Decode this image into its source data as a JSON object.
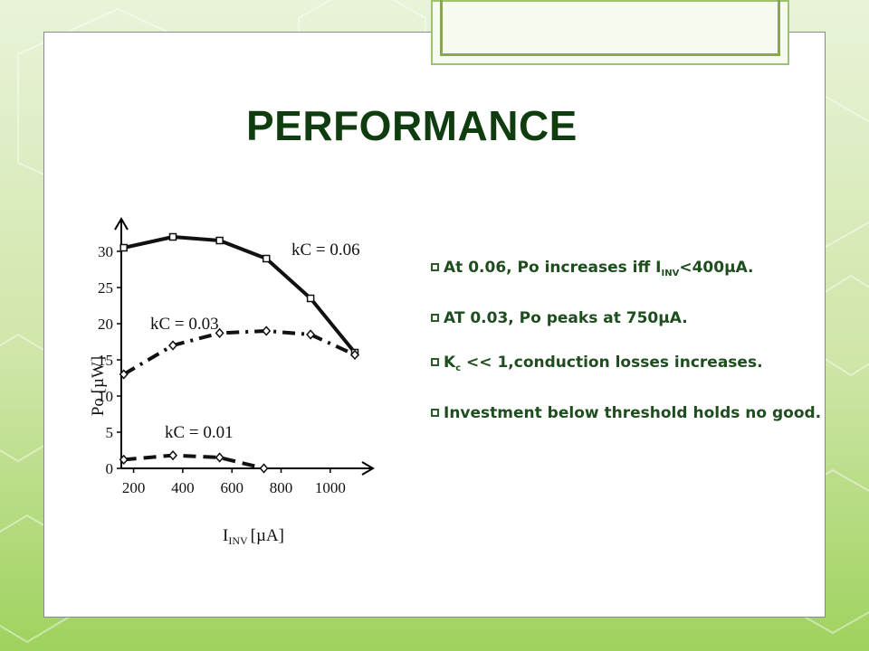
{
  "slide": {
    "title": "PERFORMANCE",
    "colors": {
      "title": "#0f3d0f",
      "bullet_text": "#1e4d1e",
      "background_green": "#9fd25e"
    }
  },
  "bullets": [
    {
      "icon": "checkbox-icon",
      "parts": [
        "At  0.06, Po increases iff I",
        "INV",
        "<400µA."
      ]
    },
    {
      "icon": "checkbox-icon",
      "parts": [
        "AT  0.03, Po peaks at 750µA."
      ]
    },
    {
      "icon": "checkbox-icon",
      "parts": [
        "K",
        "c",
        " << 1,conduction losses increases."
      ]
    },
    {
      "icon": "checkbox-icon",
      "parts": [
        "Investment below threshold holds no good."
      ]
    }
  ],
  "chart_data": {
    "type": "line",
    "xlabel": "I",
    "xlabel_sub": "INV",
    "xlabel_unit": "[µA]",
    "ylabel": "Po [µW]",
    "xlim": [
      150,
      1100
    ],
    "ylim": [
      0,
      32
    ],
    "x_ticks": [
      200,
      400,
      600,
      800,
      1000
    ],
    "y_ticks": [
      0,
      5,
      10,
      15,
      20,
      25,
      30
    ],
    "grid": false,
    "series": [
      {
        "name": "kC = 0.06",
        "style": "solid",
        "marker": "square",
        "x": [
          160,
          360,
          550,
          740,
          920,
          1100
        ],
        "y": [
          30.5,
          32,
          31.5,
          29,
          23.5,
          16
        ]
      },
      {
        "name": "kC = 0.03",
        "style": "dashdot",
        "marker": "diamond",
        "x": [
          160,
          360,
          550,
          740,
          920,
          1100
        ],
        "y": [
          13,
          17,
          18.7,
          19,
          18.5,
          15.7
        ]
      },
      {
        "name": "kC = 0.01",
        "style": "dashed",
        "marker": "diamond",
        "x": [
          160,
          360,
          550,
          730
        ],
        "y": [
          1.2,
          1.8,
          1.5,
          0
        ]
      }
    ]
  }
}
